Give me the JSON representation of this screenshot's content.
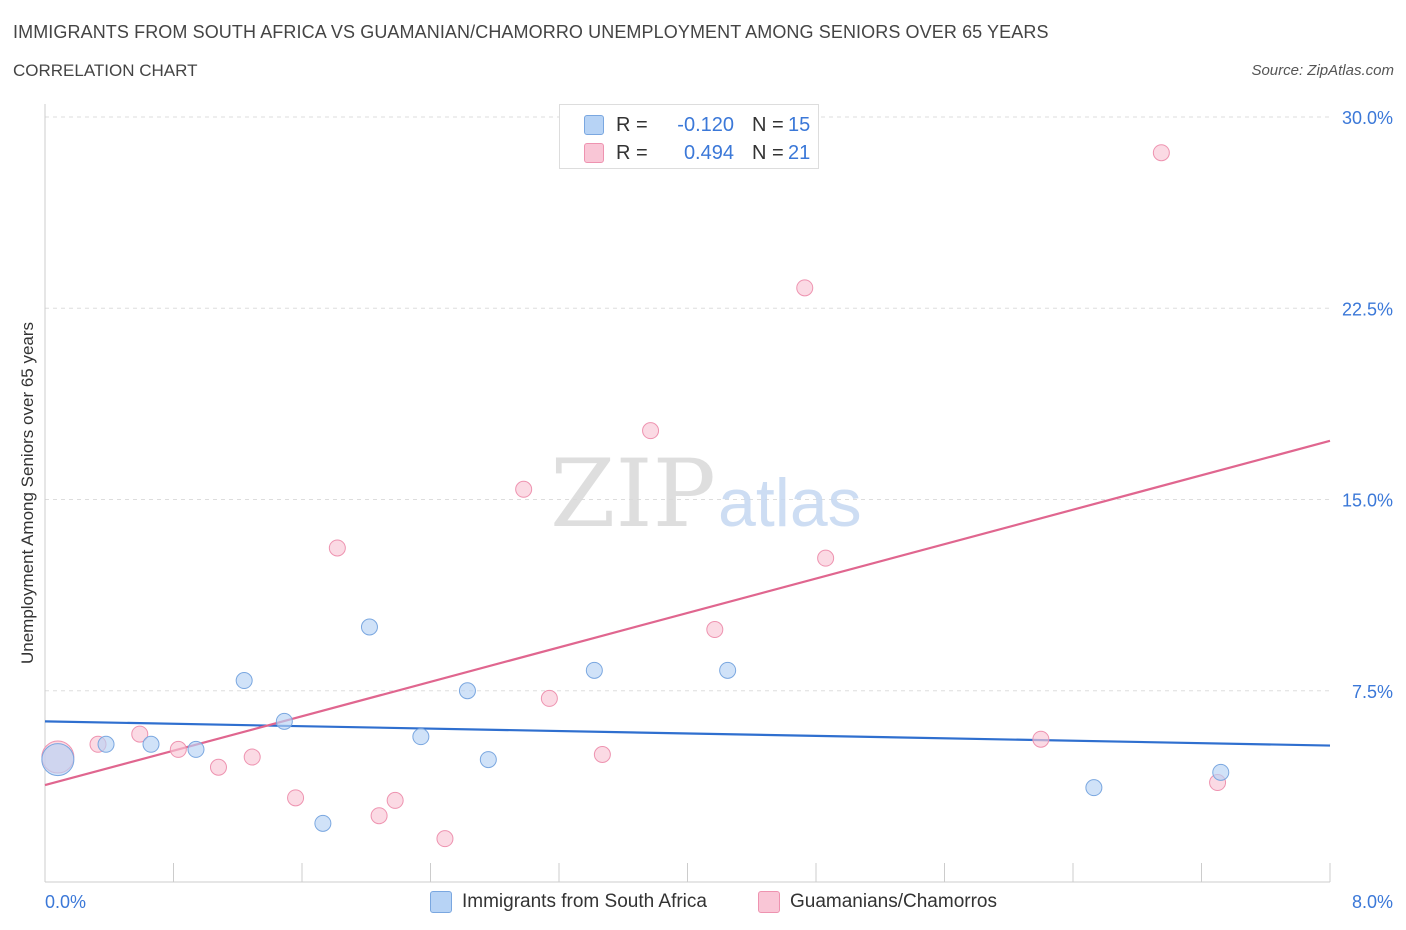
{
  "header": {
    "title": "IMMIGRANTS FROM SOUTH AFRICA VS GUAMANIAN/CHAMORRO UNEMPLOYMENT AMONG SENIORS OVER 65 YEARS",
    "subtitle": "CORRELATION CHART",
    "source": "Source: ZipAtlas.com"
  },
  "legend": {
    "rows": [
      {
        "r_label": "R =",
        "r_value": "-0.120",
        "n_label": "N =",
        "n_value": "15"
      },
      {
        "r_label": "R =",
        "r_value": "0.494",
        "n_label": "N =",
        "n_value": "21"
      }
    ]
  },
  "colors": {
    "blue_fill": "#b7d3f5",
    "blue_stroke": "#7aa7e0",
    "blue_line": "#2f6fcf",
    "pink_fill": "#f9c6d6",
    "pink_stroke": "#ee93b0",
    "pink_line": "#e0668f",
    "tick_label": "#3b78d8"
  },
  "chart_data": {
    "type": "scatter",
    "title": "IMMIGRANTS FROM SOUTH AFRICA VS GUAMANIAN/CHAMORRO UNEMPLOYMENT AMONG SENIORS OVER 65 YEARS",
    "xlabel": "",
    "ylabel": "Unemployment Among Seniors over 65 years",
    "xlim": [
      0,
      8
    ],
    "ylim": [
      0,
      30
    ],
    "x_tick_labels": [
      "0.0%",
      "8.0%"
    ],
    "y_ticks": [
      7.5,
      15.0,
      22.5,
      30.0
    ],
    "y_tick_labels": [
      "7.5%",
      "15.0%",
      "22.5%",
      "30.0%"
    ],
    "grid": true,
    "watermark": {
      "zip": "ZIP",
      "atlas": "atlas"
    },
    "series": [
      {
        "name": "Immigrants from South Africa",
        "color": "blue",
        "R": -0.12,
        "N": 15,
        "points": [
          {
            "x": 0.08,
            "y": 4.8,
            "big": true
          },
          {
            "x": 0.38,
            "y": 5.4
          },
          {
            "x": 0.66,
            "y": 5.4
          },
          {
            "x": 0.94,
            "y": 5.2
          },
          {
            "x": 1.24,
            "y": 7.9
          },
          {
            "x": 1.49,
            "y": 6.3
          },
          {
            "x": 1.73,
            "y": 2.3
          },
          {
            "x": 2.02,
            "y": 10.0
          },
          {
            "x": 2.34,
            "y": 5.7
          },
          {
            "x": 2.63,
            "y": 7.5
          },
          {
            "x": 2.76,
            "y": 4.8
          },
          {
            "x": 3.42,
            "y": 8.3
          },
          {
            "x": 4.25,
            "y": 8.3
          },
          {
            "x": 6.53,
            "y": 3.7
          },
          {
            "x": 7.32,
            "y": 4.3
          }
        ],
        "trend": {
          "x0": 0.0,
          "y0": 6.3,
          "x1": 8.0,
          "y1": 5.35
        }
      },
      {
        "name": "Guamanians/Chamorros",
        "color": "pink",
        "R": 0.494,
        "N": 21,
        "points": [
          {
            "x": 0.08,
            "y": 4.9,
            "big": true
          },
          {
            "x": 0.33,
            "y": 5.4
          },
          {
            "x": 0.59,
            "y": 5.8
          },
          {
            "x": 0.83,
            "y": 5.2
          },
          {
            "x": 1.08,
            "y": 4.5
          },
          {
            "x": 1.29,
            "y": 4.9
          },
          {
            "x": 1.56,
            "y": 3.3
          },
          {
            "x": 1.82,
            "y": 13.1
          },
          {
            "x": 2.08,
            "y": 2.6
          },
          {
            "x": 2.18,
            "y": 3.2
          },
          {
            "x": 2.49,
            "y": 1.7
          },
          {
            "x": 2.98,
            "y": 15.4
          },
          {
            "x": 3.14,
            "y": 7.2
          },
          {
            "x": 3.47,
            "y": 5.0
          },
          {
            "x": 3.77,
            "y": 17.7
          },
          {
            "x": 4.17,
            "y": 9.9
          },
          {
            "x": 4.73,
            "y": 23.3
          },
          {
            "x": 4.86,
            "y": 12.7
          },
          {
            "x": 6.2,
            "y": 5.6
          },
          {
            "x": 6.95,
            "y": 28.6
          },
          {
            "x": 7.3,
            "y": 3.9
          }
        ],
        "trend": {
          "x0": 0.0,
          "y0": 3.8,
          "x1": 8.0,
          "y1": 17.3
        }
      }
    ]
  }
}
